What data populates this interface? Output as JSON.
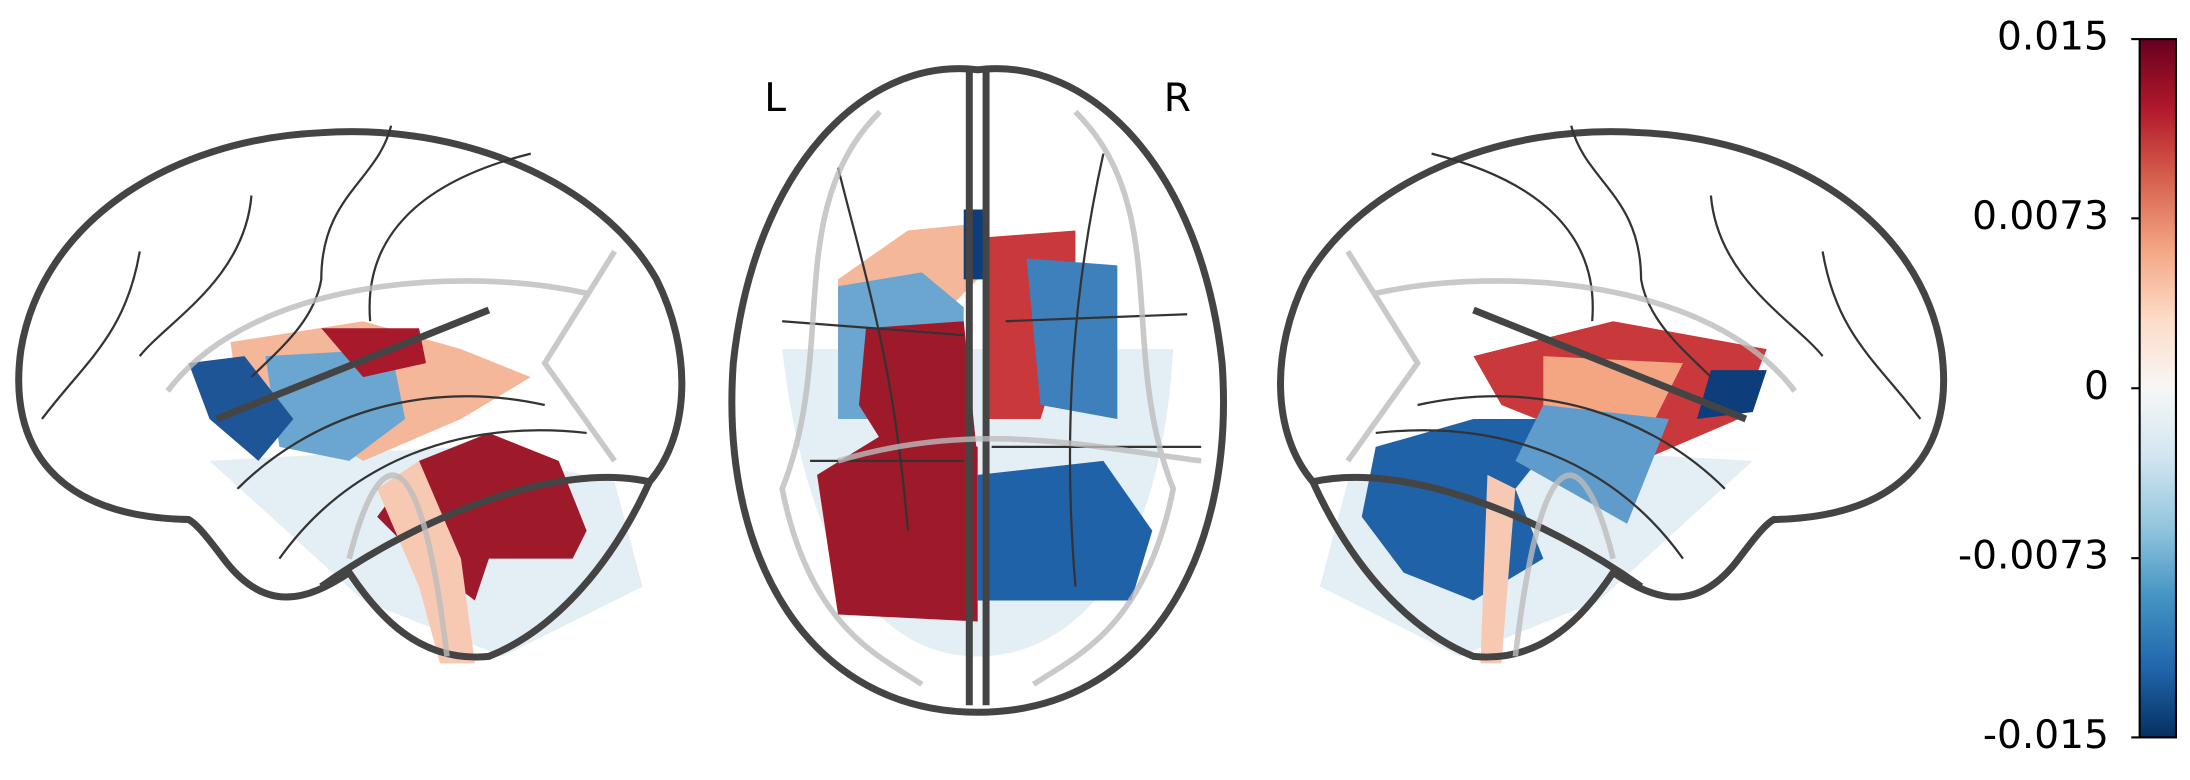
{
  "labels": {
    "left": "L",
    "right": "R"
  },
  "colorbar": {
    "ylim": [
      -0.015,
      0.015
    ],
    "yticks": [
      -0.015,
      -0.0073,
      0,
      0.0073,
      0.015
    ]
  }
}
